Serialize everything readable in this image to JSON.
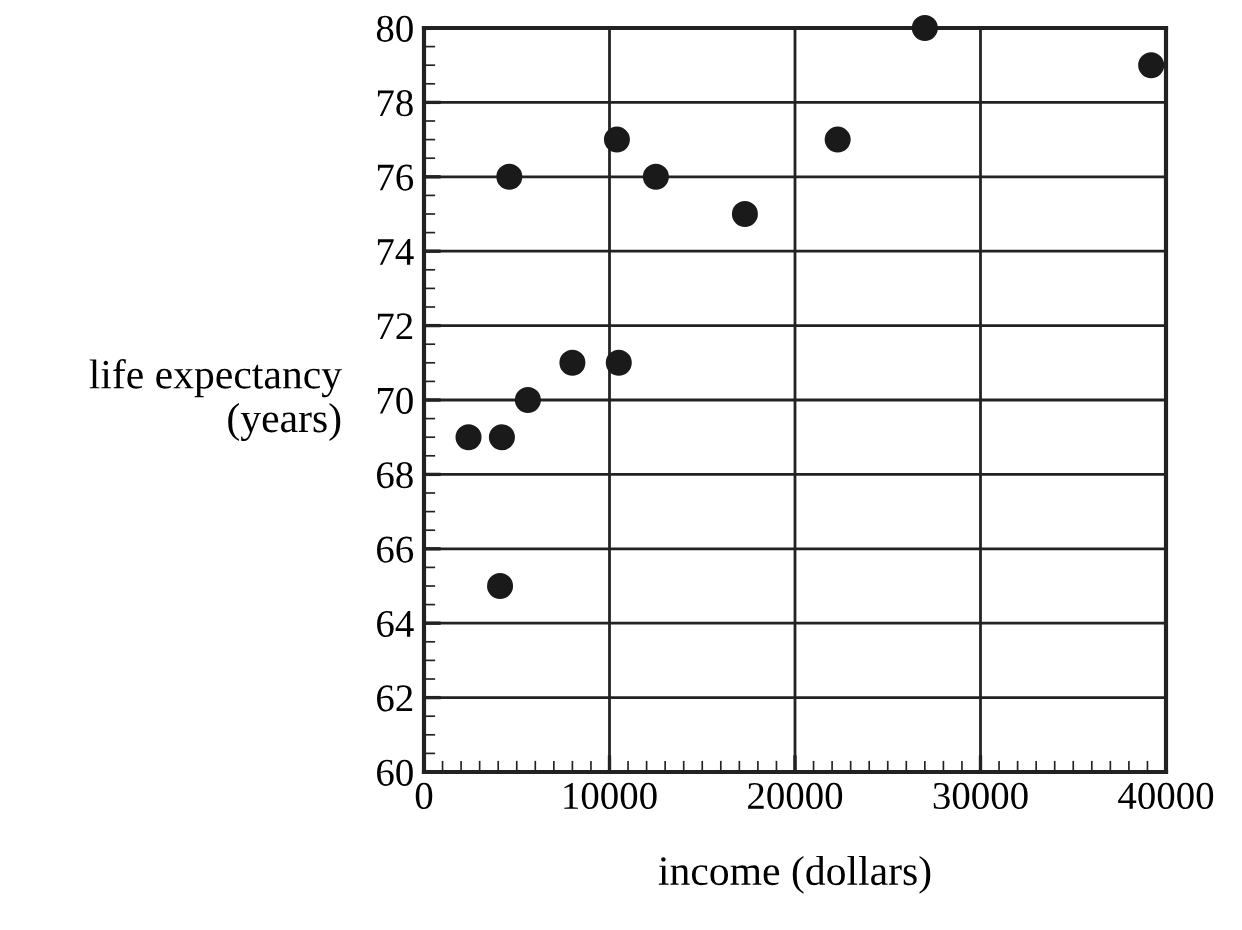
{
  "chart_data": {
    "type": "scatter",
    "xlabel": "income (dollars)",
    "ylabel": "life expectancy\n(years)",
    "x": [
      2400,
      4200,
      4100,
      4600,
      5600,
      8000,
      10400,
      10500,
      12500,
      17300,
      22300,
      27000,
      39200
    ],
    "values": [
      69,
      69,
      65,
      76,
      70,
      71,
      77,
      71,
      76,
      75,
      77,
      80,
      79
    ],
    "color": "#1a1a1a",
    "marker": "circle",
    "xlim": [
      0,
      40000
    ],
    "ylim": [
      60,
      80
    ],
    "xticks": [
      0,
      10000,
      20000,
      30000,
      40000
    ],
    "yticks": [
      60,
      62,
      64,
      66,
      68,
      70,
      72,
      74,
      76,
      78,
      80
    ],
    "grid": true
  }
}
